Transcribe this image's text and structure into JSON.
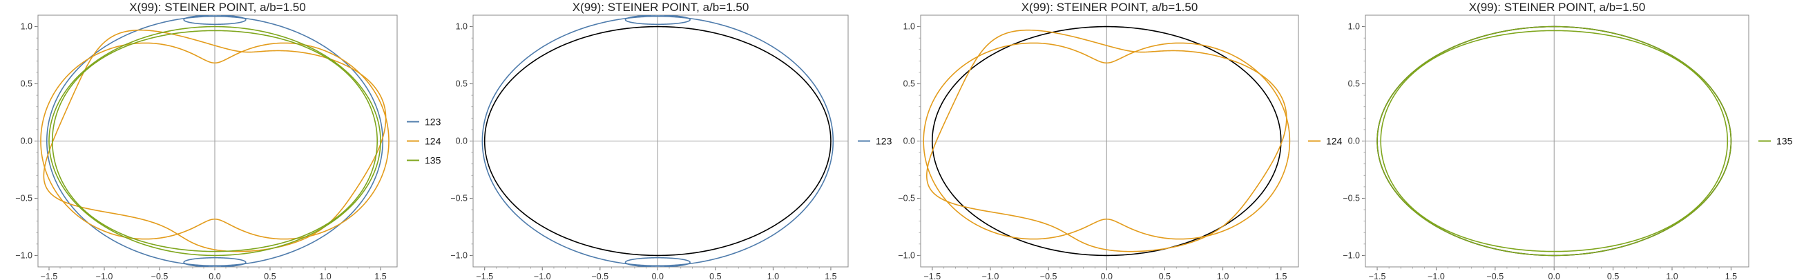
{
  "colors": {
    "123": "#4f7cac",
    "124": "#e39c1c",
    "135": "#7fa61d",
    "ellipse": "#000000"
  },
  "chart_data": [
    {
      "type": "line",
      "title": "X(99): STEINER POINT, a/b=1.50",
      "xlim": [
        -1.6,
        1.65
      ],
      "ylim": [
        -1.1,
        1.1
      ],
      "xticks": [
        -1.5,
        -1.0,
        -0.5,
        0.0,
        0.5,
        1.0,
        1.5
      ],
      "xtick_labels": [
        "−1.5",
        "−1.0",
        "−0.5",
        "0.0",
        "0.5",
        "1.0",
        "1.5"
      ],
      "yticks": [
        -1.0,
        -0.5,
        0.0,
        0.5,
        1.0
      ],
      "ytick_labels": [
        "−1.0",
        "−0.5",
        "0.0",
        "0.5",
        "1.0"
      ],
      "show_reference_ellipse": false,
      "legend": "right",
      "series": [
        {
          "name": "123",
          "color_key": "123"
        },
        {
          "name": "124",
          "color_key": "124"
        },
        {
          "name": "135",
          "color_key": "135"
        }
      ]
    },
    {
      "type": "line",
      "title": "X(99): STEINER POINT, a/b=1.50",
      "xlim": [
        -1.6,
        1.65
      ],
      "ylim": [
        -1.1,
        1.1
      ],
      "xticks": [
        -1.5,
        -1.0,
        -0.5,
        0.0,
        0.5,
        1.0,
        1.5
      ],
      "xtick_labels": [
        "−1.5",
        "−1.0",
        "−0.5",
        "0.0",
        "0.5",
        "1.0",
        "1.5"
      ],
      "yticks": [
        -1.0,
        -0.5,
        0.0,
        0.5,
        1.0
      ],
      "ytick_labels": [
        "−1.0",
        "−0.5",
        "0.0",
        "0.5",
        "1.0"
      ],
      "show_reference_ellipse": true,
      "legend": "right",
      "series": [
        {
          "name": "123",
          "color_key": "123"
        }
      ]
    },
    {
      "type": "line",
      "title": "X(99): STEINER POINT, a/b=1.50",
      "xlim": [
        -1.6,
        1.65
      ],
      "ylim": [
        -1.1,
        1.1
      ],
      "xticks": [
        -1.5,
        -1.0,
        -0.5,
        0.0,
        0.5,
        1.0,
        1.5
      ],
      "xtick_labels": [
        "−1.5",
        "−1.0",
        "−0.5",
        "0.0",
        "0.5",
        "1.0",
        "1.5"
      ],
      "yticks": [
        -1.0,
        -0.5,
        0.0,
        0.5,
        1.0
      ],
      "ytick_labels": [
        "−1.0",
        "−0.5",
        "0.0",
        "0.5",
        "1.0"
      ],
      "show_reference_ellipse": true,
      "legend": "right",
      "series": [
        {
          "name": "124",
          "color_key": "124"
        }
      ]
    },
    {
      "type": "line",
      "title": "X(99): STEINER POINT, a/b=1.50",
      "xlim": [
        -1.6,
        1.65
      ],
      "ylim": [
        -1.1,
        1.1
      ],
      "xticks": [
        -1.5,
        -1.0,
        -0.5,
        0.0,
        0.5,
        1.0,
        1.5
      ],
      "xtick_labels": [
        "−1.5",
        "−1.0",
        "−0.5",
        "0.0",
        "0.5",
        "1.0",
        "1.5"
      ],
      "yticks": [
        -1.0,
        -0.5,
        0.0,
        0.5,
        1.0
      ],
      "ytick_labels": [
        "−1.0",
        "−0.5",
        "0.0",
        "0.5",
        "1.0"
      ],
      "show_reference_ellipse": true,
      "legend": "right",
      "series": [
        {
          "name": "135",
          "color_key": "135"
        }
      ]
    }
  ]
}
